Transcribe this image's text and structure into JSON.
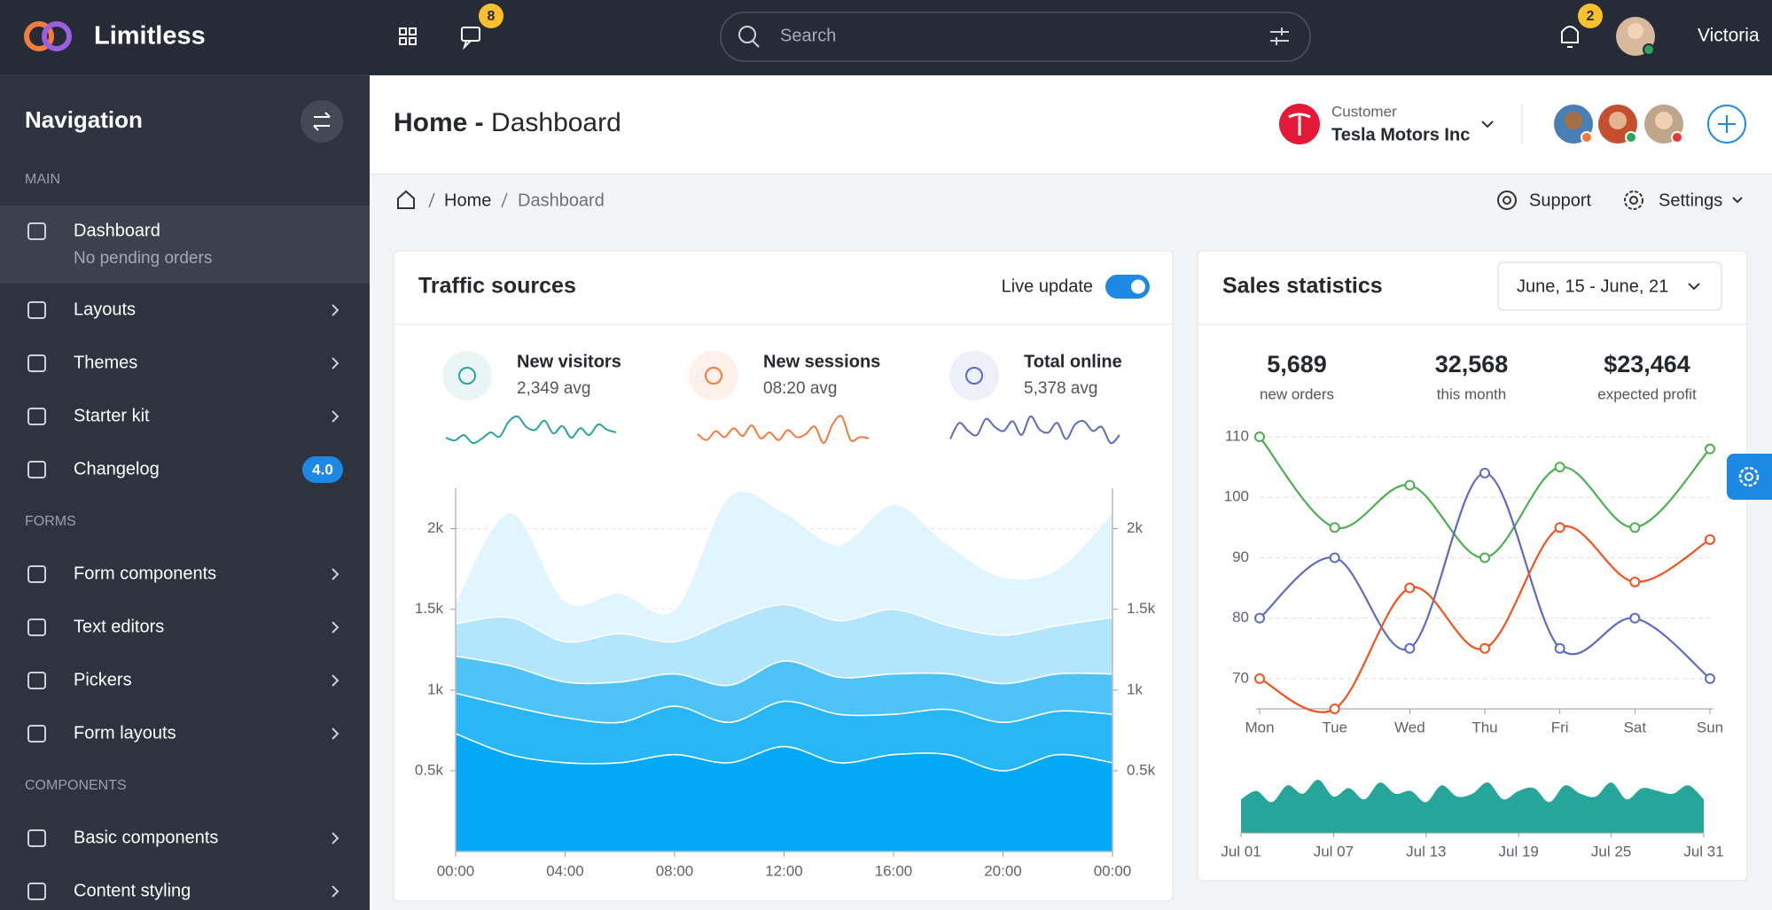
{
  "header": {
    "brand": "Limitless",
    "messages_badge": 8,
    "search_placeholder": "Search",
    "notifications_badge": 2,
    "user": "Victoria"
  },
  "sidebar": {
    "title": "Navigation",
    "sections": [
      {
        "label": "MAIN",
        "items": [
          {
            "label": "Dashboard",
            "subtitle": "No pending orders",
            "active": true
          },
          {
            "label": "Layouts"
          },
          {
            "label": "Themes"
          },
          {
            "label": "Starter kit"
          },
          {
            "label": "Changelog",
            "badge": "4.0"
          }
        ]
      },
      {
        "label": "FORMS",
        "items": [
          {
            "label": "Form components"
          },
          {
            "label": "Text editors"
          },
          {
            "label": "Pickers"
          },
          {
            "label": "Form layouts"
          }
        ]
      },
      {
        "label": "COMPONENTS",
        "items": [
          {
            "label": "Basic components"
          },
          {
            "label": "Content styling"
          }
        ]
      }
    ]
  },
  "page_header": {
    "title_prefix": "Home -",
    "title": "Dashboard",
    "customer_label": "Customer",
    "customer_name": "Tesla Motors Inc"
  },
  "breadcrumb": {
    "items": [
      "Home",
      "Dashboard"
    ],
    "actions": [
      "Support",
      "Settings"
    ]
  },
  "traffic": {
    "title": "Traffic sources",
    "toggle_label": "Live update",
    "live": true,
    "stats": [
      {
        "label": "New visitors",
        "value": "2,349 avg",
        "sparkline": {
          "color": "#26a69a",
          "values": [
            40,
            35,
            45,
            30,
            38,
            50,
            42,
            70,
            80,
            60,
            55,
            72,
            48,
            62,
            40,
            58,
            45,
            65,
            55,
            50
          ]
        }
      },
      {
        "label": "New sessions",
        "value": "08:20 avg",
        "sparkline": {
          "color": "#f4793b",
          "values": [
            55,
            45,
            60,
            50,
            65,
            52,
            70,
            48,
            58,
            45,
            62,
            50,
            55,
            68,
            40,
            72,
            85,
            45,
            50,
            48
          ]
        }
      },
      {
        "label": "Total online",
        "value": "5,378 avg",
        "sparkline": {
          "color": "#5c6bc0",
          "values": [
            50,
            70,
            60,
            55,
            75,
            65,
            60,
            72,
            55,
            78,
            62,
            58,
            70,
            50,
            68,
            72,
            60,
            65,
            45,
            55
          ]
        }
      }
    ]
  },
  "sales": {
    "title": "Sales statistics",
    "date_range": "June, 15 - June, 21",
    "stats": [
      {
        "value": "5,689",
        "label": "new orders"
      },
      {
        "value": "32,568",
        "label": "this month"
      },
      {
        "value": "$23,464",
        "label": "expected profit"
      }
    ]
  },
  "chart_data": [
    {
      "type": "area",
      "stacked": true,
      "grid": true,
      "x": [
        0,
        2,
        4,
        6,
        8,
        10,
        12,
        14,
        16,
        18,
        20,
        22,
        24
      ],
      "xlim": [
        0,
        24
      ],
      "xticks": [
        {
          "value": 0,
          "label": "00:00"
        },
        {
          "value": 4,
          "label": "04:00"
        },
        {
          "value": 8,
          "label": "08:00"
        },
        {
          "value": 12,
          "label": "12:00"
        },
        {
          "value": 16,
          "label": "16:00"
        },
        {
          "value": 20,
          "label": "20:00"
        },
        {
          "value": 24,
          "label": "00:00"
        }
      ],
      "ylim": [
        0,
        2250
      ],
      "yticks": [
        {
          "value": 500,
          "label": "0.5k"
        },
        {
          "value": 1000,
          "label": "1k"
        },
        {
          "value": 1500,
          "label": "1.5k"
        },
        {
          "value": 2000,
          "label": "2k"
        }
      ],
      "y2lim": [
        0,
        2250
      ],
      "y2ticks": [
        {
          "value": 500,
          "label": "0.5k"
        },
        {
          "value": 1000,
          "label": "1k"
        },
        {
          "value": 1500,
          "label": "1.5k"
        },
        {
          "value": 2000,
          "label": "2k"
        }
      ],
      "series": [
        {
          "color": "#03a9f4",
          "values": [
            730,
            600,
            550,
            550,
            600,
            550,
            650,
            550,
            600,
            600,
            500,
            600,
            550
          ]
        },
        {
          "color": "#29b6f6",
          "values": [
            250,
            300,
            280,
            250,
            300,
            250,
            280,
            300,
            250,
            280,
            300,
            270,
            300
          ]
        },
        {
          "color": "#4fc3f7",
          "values": [
            230,
            250,
            220,
            250,
            200,
            230,
            250,
            230,
            250,
            220,
            240,
            230,
            250
          ]
        },
        {
          "color": "#b3e5fc",
          "values": [
            200,
            300,
            250,
            300,
            200,
            400,
            350,
            350,
            400,
            300,
            300,
            300,
            350
          ]
        },
        {
          "color": "#e1f5fe",
          "values": [
            140,
            650,
            250,
            250,
            200,
            770,
            570,
            470,
            650,
            500,
            360,
            350,
            650
          ]
        }
      ]
    },
    {
      "type": "line",
      "grid": true,
      "categories": [
        "Mon",
        "Tue",
        "Wed",
        "Thu",
        "Fri",
        "Sat",
        "Sun"
      ],
      "ylim": [
        65,
        110
      ],
      "yticks": [
        70,
        80,
        90,
        100,
        110
      ],
      "series": [
        {
          "color": "#4caf50",
          "values": [
            110,
            95,
            102,
            90,
            105,
            95,
            108
          ]
        },
        {
          "color": "#5c6bc0",
          "values": [
            80,
            90,
            75,
            104,
            75,
            80,
            70
          ]
        },
        {
          "color": "#f4511e",
          "values": [
            70,
            65,
            85,
            75,
            95,
            86,
            93
          ]
        }
      ]
    },
    {
      "type": "area",
      "color": "#26a69a",
      "categories": [
        "Jul 01",
        null,
        null,
        null,
        null,
        null,
        "Jul 07",
        null,
        null,
        null,
        null,
        null,
        "Jul 13",
        null,
        null,
        null,
        null,
        null,
        "Jul 19",
        null,
        null,
        null,
        null,
        null,
        "Jul 25",
        null,
        null,
        null,
        null,
        null,
        "Jul 31"
      ],
      "values": [
        60,
        75,
        55,
        85,
        70,
        95,
        65,
        80,
        60,
        90,
        70,
        75,
        55,
        85,
        65,
        70,
        90,
        60,
        75,
        80,
        55,
        85,
        70,
        65,
        90,
        60,
        80,
        75,
        70,
        85,
        60
      ]
    }
  ]
}
